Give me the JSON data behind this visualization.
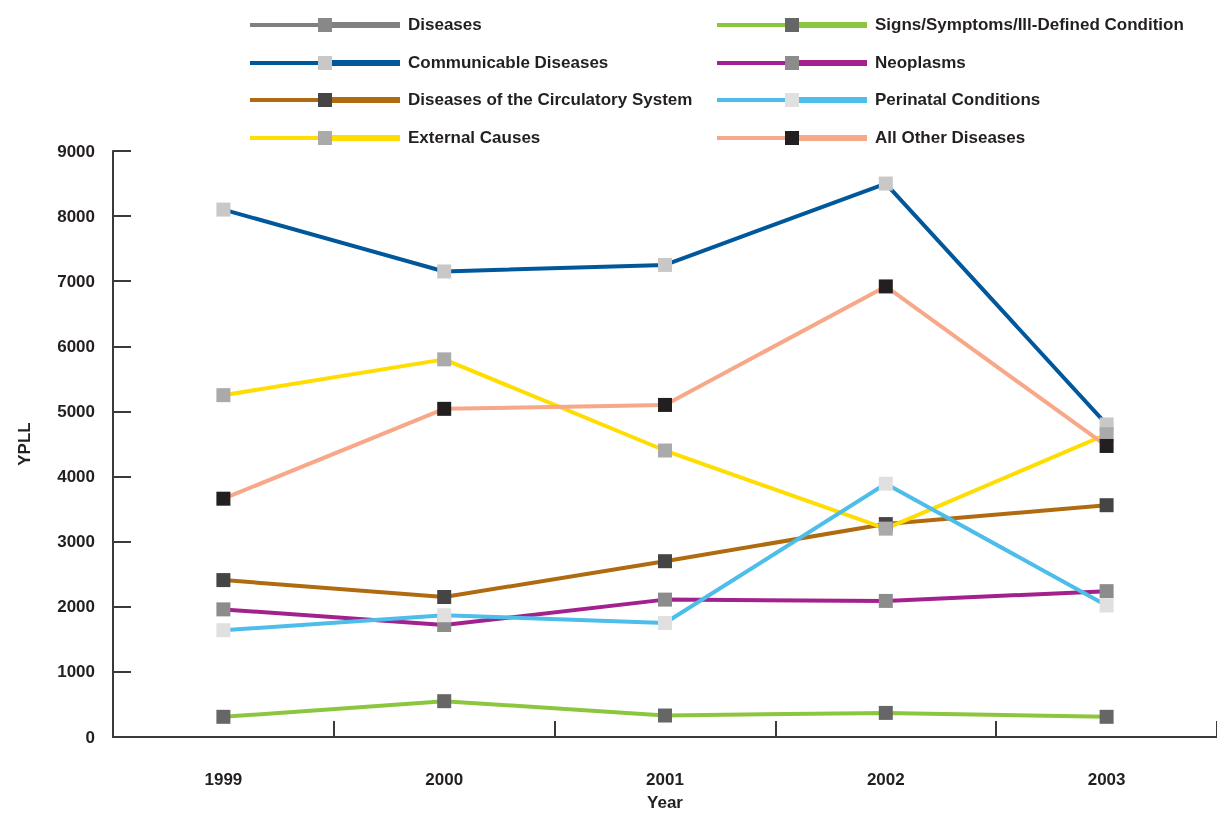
{
  "chart_data": {
    "type": "line",
    "xlabel": "Year",
    "ylabel": "YPLL",
    "categories": [
      "1999",
      "2000",
      "2001",
      "2002",
      "2003"
    ],
    "ylim": [
      0,
      9000
    ],
    "yticks": [
      0,
      1000,
      2000,
      3000,
      4000,
      5000,
      6000,
      7000,
      8000,
      9000
    ],
    "grid": false,
    "legend": "top",
    "marker": "square",
    "line_style": "solid",
    "series": [
      {
        "name": "Diseases",
        "color": "#808080",
        "colors": [
          "#888888",
          "#888888",
          "#888888",
          "#888888",
          "#888888"
        ],
        "values": [
          null,
          null,
          null,
          null,
          null
        ]
      },
      {
        "name": "Communicable Diseases",
        "color": "#00589b",
        "colors": [
          "#c8c8c8",
          "#c8c8c8",
          "#c8c8c8",
          "#c8c8c8",
          "#c8c8c8"
        ],
        "values": [
          8100,
          7150,
          7250,
          8500,
          4800
        ]
      },
      {
        "name": "Diseases of the Circulatory System",
        "color": "#b06a10",
        "colors": [
          "#454545",
          "#454545",
          "#454545",
          "#454545",
          "#454545"
        ],
        "values": [
          2410,
          2150,
          2700,
          3270,
          3560
        ]
      },
      {
        "name": "External Causes",
        "color": "#ffdd00",
        "colors": [
          "#aaaaaa",
          "#aaaaaa",
          "#aaaaaa",
          "#aaaaaa",
          "#aaaaaa"
        ],
        "values": [
          5250,
          5800,
          4400,
          3200,
          4650
        ]
      },
      {
        "name": "Signs/Symptoms/Ill-Defined Condition",
        "color": "#8cc63f",
        "colors": [
          "#666666",
          "#666666",
          "#666666",
          "#666666",
          "#666666"
        ],
        "values": [
          310,
          550,
          330,
          370,
          310
        ]
      },
      {
        "name": "Neoplasms",
        "color": "#a3208f",
        "colors": [
          "#8c8c8c",
          "#8c8c8c",
          "#8c8c8c",
          "#8c8c8c",
          "#8c8c8c"
        ],
        "values": [
          1960,
          1720,
          2110,
          2090,
          2240
        ]
      },
      {
        "name": "Perinatal Conditions",
        "color": "#4dbde9",
        "colors": [
          "#e0e0e0",
          "#e0e0e0",
          "#e0e0e0",
          "#e0e0e0",
          "#e0e0e0"
        ],
        "values": [
          1640,
          1870,
          1750,
          3890,
          2020
        ]
      },
      {
        "name": "All Other Diseases",
        "color": "#f7a889",
        "colors": [
          "#231f20",
          "#231f20",
          "#231f20",
          "#231f20",
          "#231f20"
        ],
        "values": [
          3660,
          5040,
          5100,
          6920,
          4470
        ]
      }
    ]
  }
}
